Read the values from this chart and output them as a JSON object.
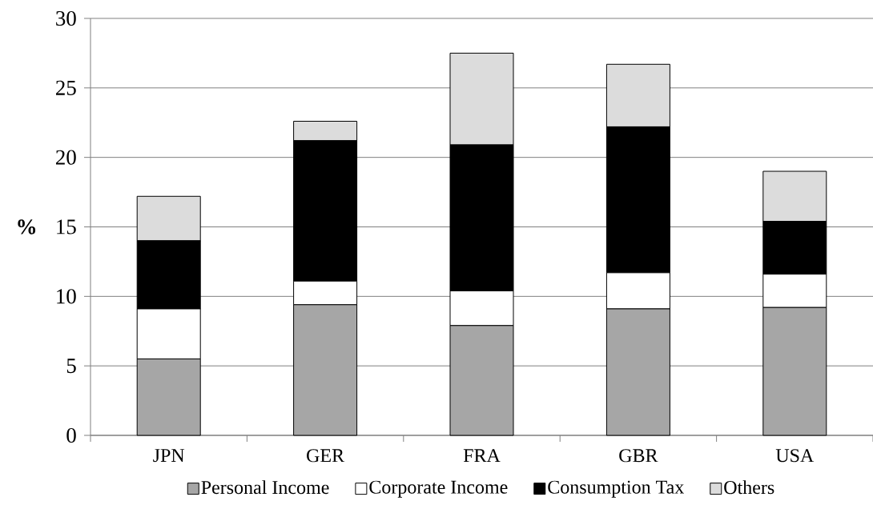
{
  "chart_data": {
    "type": "bar",
    "stacked": true,
    "ylabel": "%",
    "categories": [
      "JPN",
      "GER",
      "FRA",
      "GBR",
      "USA"
    ],
    "series": [
      {
        "name": "Personal Income",
        "color": "#a6a6a6",
        "values": [
          5.5,
          9.4,
          7.9,
          9.1,
          9.2
        ]
      },
      {
        "name": "Corporate Income",
        "color": "#ffffff",
        "values": [
          3.6,
          1.7,
          2.5,
          2.6,
          2.4
        ]
      },
      {
        "name": "Consumption Tax",
        "color": "#000000",
        "values": [
          4.9,
          10.1,
          10.5,
          10.5,
          3.8
        ]
      },
      {
        "name": "Others",
        "color": "#dcdcdc",
        "values": [
          3.2,
          1.4,
          6.6,
          4.5,
          3.6
        ]
      }
    ],
    "ylim": [
      0,
      30
    ],
    "yticks": [
      0,
      5,
      10,
      15,
      20,
      25,
      30
    ],
    "grid": "y",
    "legend": "bottom"
  }
}
